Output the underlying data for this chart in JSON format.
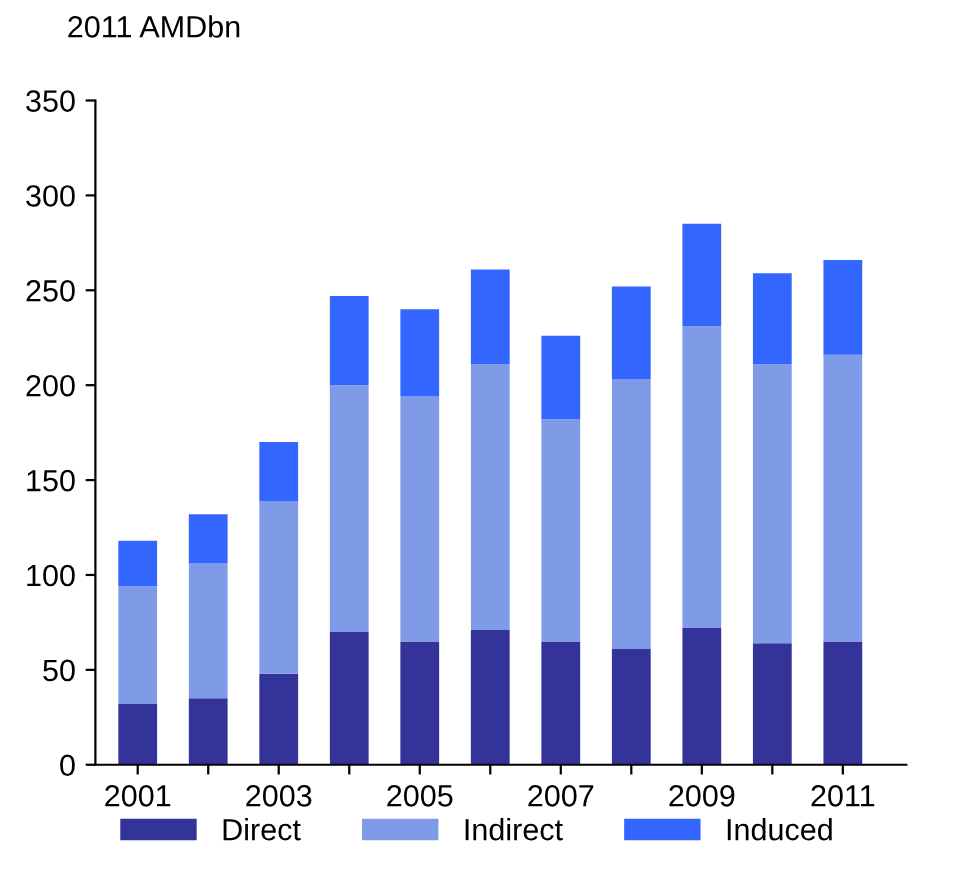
{
  "chart_data": {
    "type": "bar",
    "stacked": true,
    "ylabel": "2011 AMDbn",
    "categories": [
      "2001",
      null,
      "2003",
      null,
      "2005",
      null,
      "2007",
      null,
      "2009",
      null,
      "2011"
    ],
    "series": [
      {
        "name": "Direct",
        "color": "#333399",
        "values": [
          32,
          35,
          48,
          70,
          65,
          71,
          65,
          61,
          72,
          64,
          65
        ]
      },
      {
        "name": "Indirect",
        "color": "#7f9be8",
        "values": [
          62,
          71,
          91,
          130,
          129,
          140,
          117,
          142,
          159,
          147,
          151
        ]
      },
      {
        "name": "Induced",
        "color": "#3366ff",
        "values": [
          24,
          26,
          31,
          47,
          46,
          50,
          44,
          49,
          54,
          48,
          50
        ]
      }
    ],
    "ylim": [
      0,
      350
    ],
    "yticks": [
      0,
      50,
      100,
      150,
      200,
      250,
      300,
      350
    ],
    "grid": false,
    "legend": "bottom"
  }
}
